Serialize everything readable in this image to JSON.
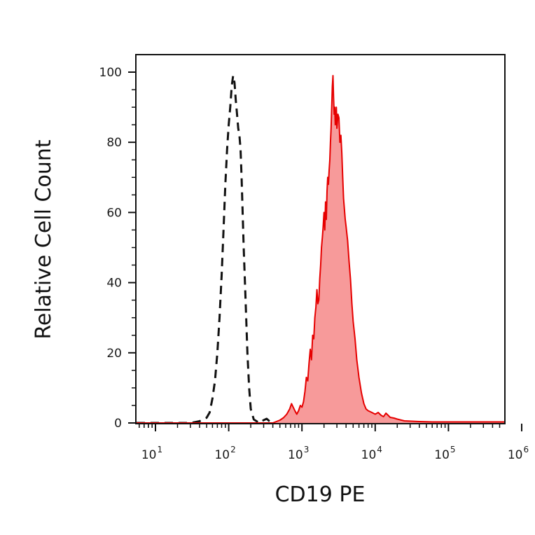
{
  "chart_data": {
    "type": "area",
    "title": "",
    "xlabel": "CD19 PE",
    "ylabel": "Relative Cell Count",
    "xscale": "log",
    "xlim": [
      5,
      1100000
    ],
    "ylim": [
      0,
      100
    ],
    "x_ticks": [
      {
        "base": "10",
        "exp": "1"
      },
      {
        "base": "10",
        "exp": "2"
      },
      {
        "base": "10",
        "exp": "3"
      },
      {
        "base": "10",
        "exp": "4"
      },
      {
        "base": "10",
        "exp": "5"
      },
      {
        "base": "10",
        "exp": "6"
      }
    ],
    "y_ticks": [
      "0",
      "20",
      "40",
      "60",
      "80",
      "100"
    ],
    "y_tick_values": [
      0,
      20,
      40,
      60,
      80,
      100
    ],
    "grid": false,
    "series": [
      {
        "style": "dashed-outline",
        "color": "#111111",
        "x": [
          5,
          30,
          40,
          50,
          55,
          60,
          65,
          70,
          75,
          80,
          85,
          90,
          95,
          100,
          105,
          110,
          115,
          120,
          125,
          130,
          135,
          140,
          145,
          150,
          155,
          160,
          170,
          180,
          190,
          200,
          220,
          240,
          260,
          300,
          330,
          360,
          400,
          450,
          500,
          600,
          800,
          1000,
          1100000
        ],
        "y": [
          0,
          0,
          0.5,
          1.5,
          3,
          7,
          12,
          20,
          30,
          42,
          55,
          68,
          78,
          85,
          90,
          96,
          99,
          97,
          92,
          88,
          84,
          82,
          78,
          70,
          60,
          50,
          35,
          20,
          10,
          4,
          1,
          0.5,
          0,
          0.8,
          1.2,
          0.5,
          0.2,
          0,
          0,
          0,
          0,
          0,
          0
        ]
      },
      {
        "style": "filled",
        "color": "#e60000",
        "fill": "#f79a9a",
        "x": [
          5,
          400,
          500,
          560,
          620,
          680,
          720,
          760,
          800,
          850,
          900,
          950,
          1000,
          1050,
          1100,
          1150,
          1200,
          1250,
          1300,
          1350,
          1400,
          1450,
          1500,
          1550,
          1600,
          1650,
          1700,
          1750,
          1800,
          1850,
          1900,
          1950,
          2000,
          2050,
          2100,
          2150,
          2200,
          2250,
          2300,
          2350,
          2400,
          2450,
          2500,
          2550,
          2600,
          2650,
          2700,
          2750,
          2800,
          2850,
          2900,
          2950,
          3000,
          3100,
          3200,
          3300,
          3400,
          3500,
          3600,
          3700,
          3800,
          3900,
          4000,
          4200,
          4400,
          4600,
          4800,
          5000,
          5300,
          5600,
          6000,
          6500,
          7000,
          7500,
          8000,
          9000,
          10000,
          11000,
          12000,
          13000,
          14000,
          15000,
          16000,
          18000,
          20000,
          25000,
          40000,
          60000,
          100000,
          200000,
          300000,
          500000,
          700000,
          1100000
        ],
        "y": [
          0,
          0,
          0.8,
          1.5,
          2.5,
          4,
          5.5,
          4.5,
          3.5,
          2.5,
          3.5,
          5,
          4.5,
          6,
          9,
          13,
          12,
          17,
          21,
          18,
          25,
          24,
          30,
          33,
          38,
          34,
          35,
          41,
          45,
          50,
          53,
          56,
          60,
          55,
          63,
          58,
          66,
          70,
          68,
          72,
          75,
          80,
          84,
          90,
          96,
          99,
          93,
          88,
          90,
          85,
          86,
          90,
          84,
          88,
          87,
          80,
          82,
          77,
          70,
          64,
          61,
          58,
          56,
          52,
          46,
          41,
          34,
          29,
          24,
          18,
          13,
          8.5,
          5.5,
          4,
          3.5,
          3,
          2.5,
          3,
          2.2,
          1.8,
          2.8,
          2.2,
          1.6,
          1.4,
          1.1,
          0.6,
          0.4,
          0.3,
          0.3,
          0.3,
          0.3,
          0.3,
          0.3,
          0.3
        ]
      }
    ]
  }
}
